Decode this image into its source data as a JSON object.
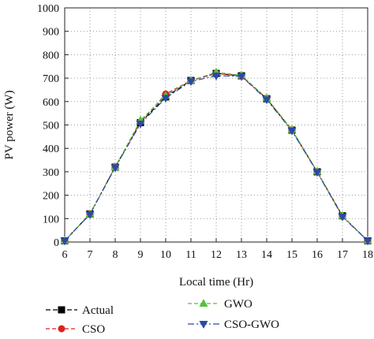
{
  "chart_data": {
    "type": "line",
    "title": "",
    "xlabel": "Local time (Hr)",
    "ylabel": "PV power (W)",
    "xlim": [
      6,
      18
    ],
    "ylim": [
      0,
      1000
    ],
    "x_ticks": [
      6,
      7,
      8,
      9,
      10,
      11,
      12,
      13,
      14,
      15,
      16,
      17,
      18
    ],
    "y_ticks": [
      0,
      100,
      200,
      300,
      400,
      500,
      600,
      700,
      800,
      900,
      1000
    ],
    "grid": true,
    "legend_position": "bottom",
    "x": [
      6,
      7,
      8,
      9,
      10,
      11,
      12,
      13,
      14,
      15,
      16,
      17,
      18
    ],
    "series": [
      {
        "name": "Actual",
        "color": "#000000",
        "marker": "square",
        "values": [
          5,
          120,
          320,
          510,
          620,
          690,
          720,
          710,
          612,
          478,
          300,
          112,
          5
        ]
      },
      {
        "name": "CSO",
        "color": "#e0201c",
        "marker": "circle",
        "values": [
          5,
          120,
          322,
          512,
          632,
          690,
          720,
          708,
          612,
          478,
          300,
          110,
          5
        ]
      },
      {
        "name": "GWO",
        "color": "#55c23a",
        "marker": "triangle-up",
        "values": [
          5,
          120,
          320,
          520,
          625,
          690,
          725,
          712,
          615,
          480,
          302,
          112,
          5
        ]
      },
      {
        "name": "CSO-GWO",
        "color": "#2a4aa8",
        "marker": "triangle-down",
        "values": [
          5,
          118,
          318,
          505,
          615,
          686,
          710,
          708,
          608,
          475,
          298,
          108,
          5
        ]
      }
    ]
  }
}
